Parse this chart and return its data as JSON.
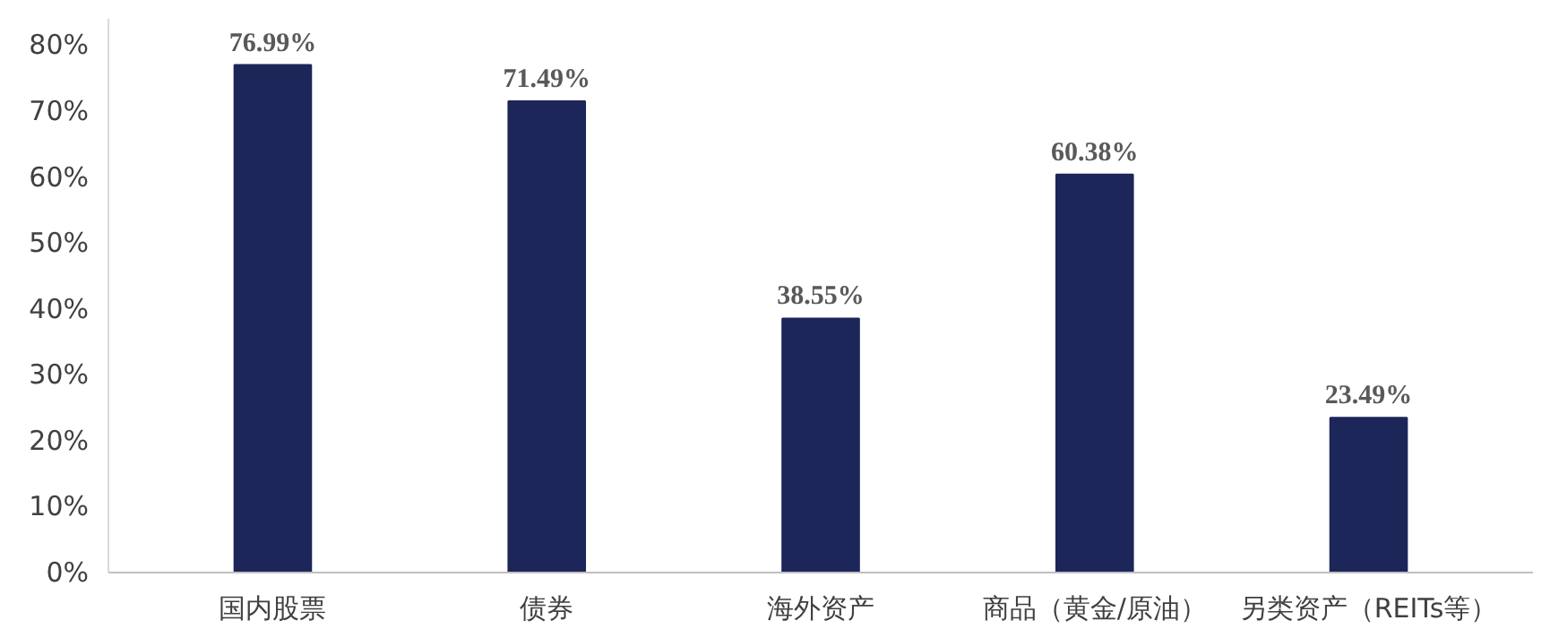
{
  "chart_data": {
    "type": "bar",
    "categories": [
      "国内股票",
      "债券",
      "海外资产",
      "商品（黄金/原油）",
      "另类资产（REITs等）"
    ],
    "values": [
      76.99,
      71.49,
      38.55,
      60.38,
      23.49
    ],
    "color": "#1c2659",
    "value_labels": [
      "76.99%",
      "71.49%",
      "38.55%",
      "60.38%",
      "23.49%"
    ],
    "ylim": [
      0,
      84
    ],
    "yticks": [
      {
        "value": 0,
        "label": "0%"
      },
      {
        "value": 10,
        "label": "10%"
      },
      {
        "value": 20,
        "label": "20%"
      },
      {
        "value": 30,
        "label": "30%"
      },
      {
        "value": 40,
        "label": "40%"
      },
      {
        "value": 50,
        "label": "50%"
      },
      {
        "value": 60,
        "label": "60%"
      },
      {
        "value": 70,
        "label": "70%"
      },
      {
        "value": 80,
        "label": "80%"
      }
    ],
    "grid": false
  }
}
